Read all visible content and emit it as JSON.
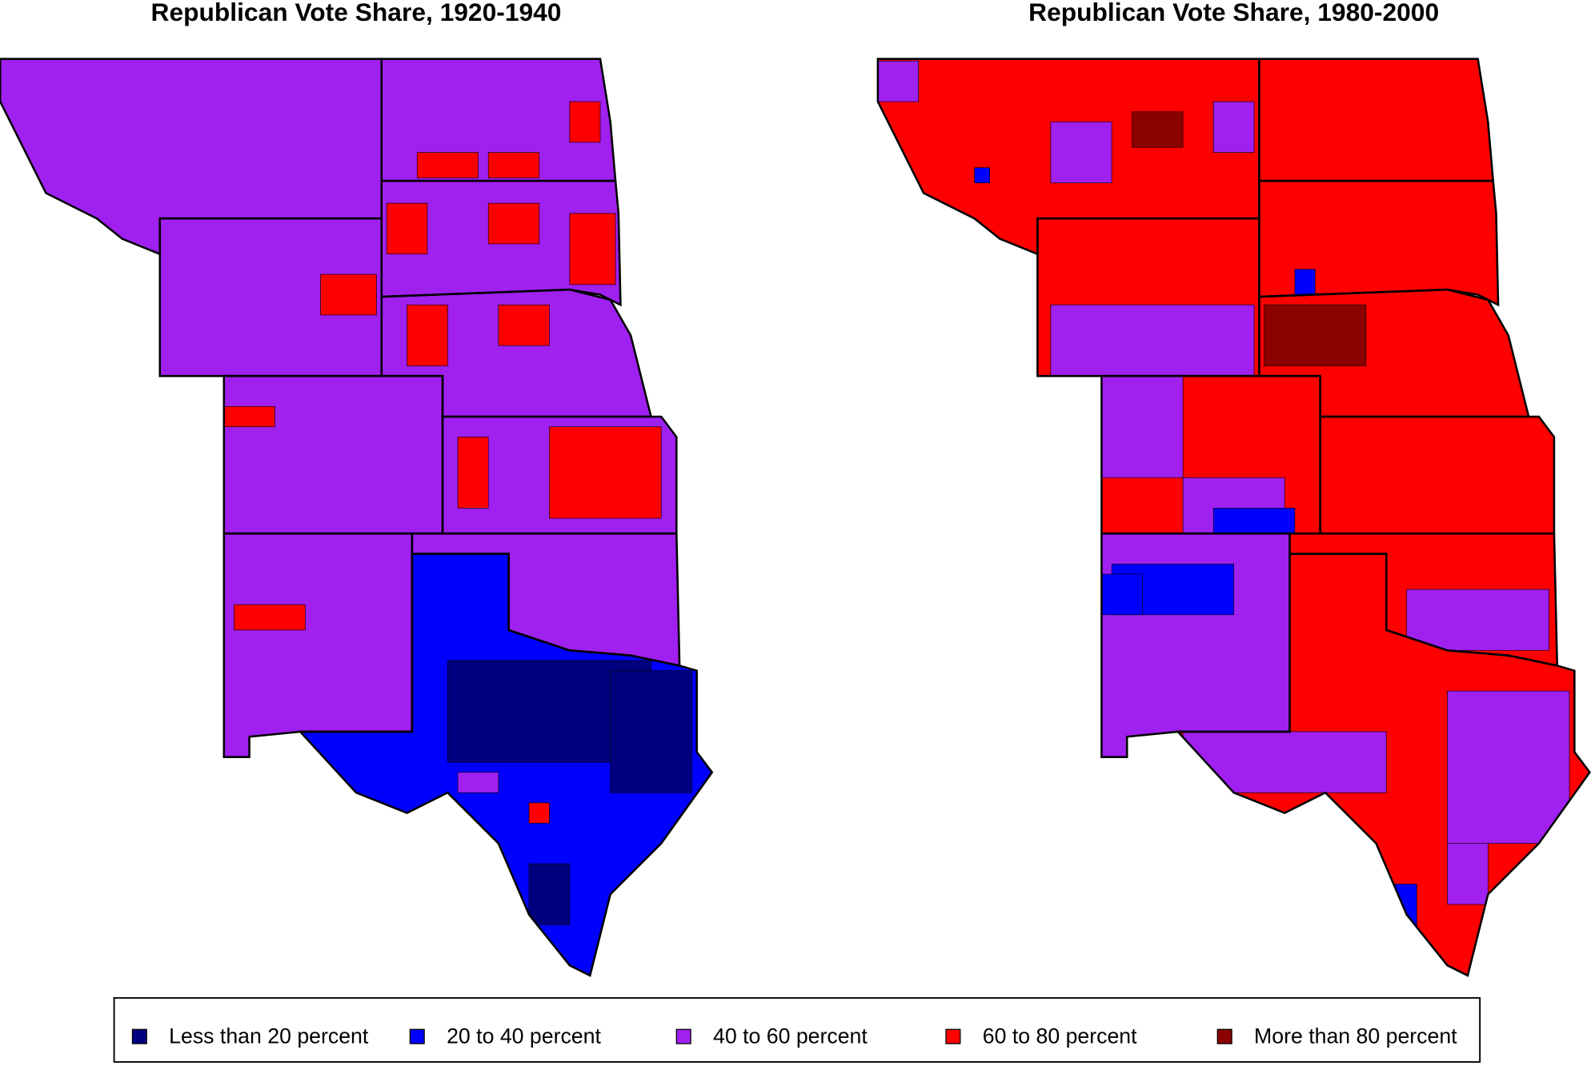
{
  "maps": [
    {
      "title": "Republican Vote Share, 1920-1940"
    },
    {
      "title": "Republican Vote Share, 1980-2000"
    }
  ],
  "legend": {
    "items": [
      {
        "label": "Less than 20 percent",
        "color": "#00007f"
      },
      {
        "label": "20 to 40 percent",
        "color": "#0000ff"
      },
      {
        "label": "40 to 60 percent",
        "color": "#a020f0"
      },
      {
        "label": "60 to 80 percent",
        "color": "#ff0000"
      },
      {
        "label": "More than 80 percent",
        "color": "#8b0000"
      }
    ]
  }
}
